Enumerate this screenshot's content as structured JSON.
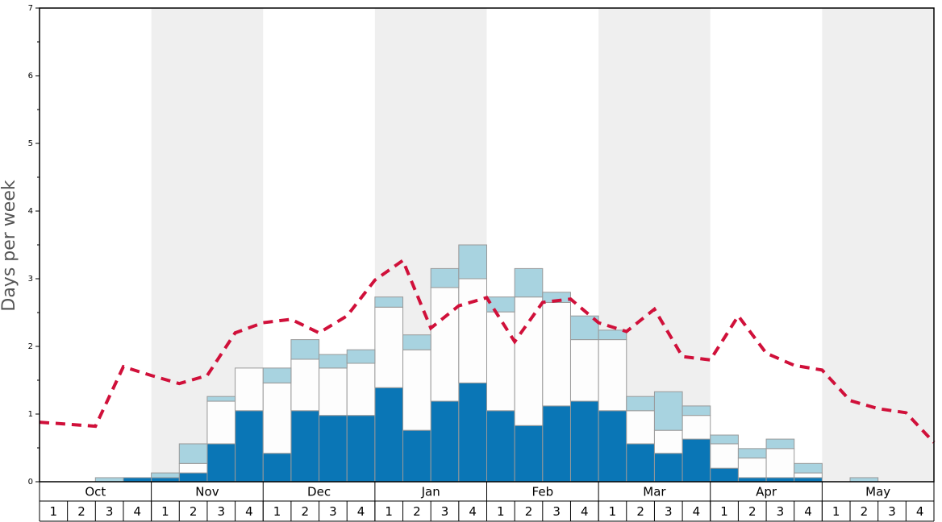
{
  "chart_data": {
    "type": "bar",
    "stacked": true,
    "y_label": "Days per week",
    "months": [
      "Oct",
      "Nov",
      "Dec",
      "Jan",
      "Feb",
      "Mar",
      "Apr",
      "May"
    ],
    "categories": [
      "1",
      "2",
      "3",
      "4",
      "1",
      "2",
      "3",
      "4",
      "1",
      "2",
      "3",
      "4",
      "1",
      "2",
      "3",
      "4",
      "1",
      "2",
      "3",
      "4",
      "1",
      "2",
      "3",
      "4",
      "1",
      "2",
      "3",
      "4",
      "1",
      "2",
      "3",
      "4"
    ],
    "series": [
      {
        "color": "#0a76b6",
        "values": [
          0,
          0,
          0,
          0.06,
          0.06,
          0.13,
          0.56,
          1.05,
          0.42,
          1.05,
          0.98,
          0.98,
          1.39,
          0.76,
          1.19,
          1.46,
          1.05,
          0.83,
          1.12,
          1.19,
          1.05,
          0.56,
          0.42,
          0.63,
          0.2,
          0.06,
          0.06,
          0.06,
          0,
          0,
          0,
          0
        ]
      },
      {
        "color": "#fdfdfd",
        "values": [
          0,
          0,
          0,
          0,
          0,
          0.14,
          0.63,
          0.63,
          1.04,
          0.76,
          0.7,
          0.77,
          1.19,
          1.19,
          1.68,
          1.54,
          1.46,
          1.9,
          1.53,
          0.91,
          1.05,
          0.49,
          0.34,
          0.35,
          0.36,
          0.29,
          0.43,
          0.07,
          0,
          0,
          0,
          0
        ]
      },
      {
        "color": "#a8d3e0",
        "values": [
          0,
          0,
          0.06,
          0,
          0.07,
          0.29,
          0.07,
          0,
          0.22,
          0.29,
          0.2,
          0.2,
          0.15,
          0.22,
          0.28,
          0.5,
          0.22,
          0.42,
          0.15,
          0.35,
          0.14,
          0.21,
          0.57,
          0.14,
          0.13,
          0.14,
          0.14,
          0.14,
          0,
          0.06,
          0,
          0
        ]
      },
      {
        "type": "line",
        "color": "#d0103a",
        "dashed": true,
        "x": [
          0,
          1,
          2,
          3,
          4,
          5,
          6,
          7,
          8,
          9,
          10,
          11,
          12,
          13,
          14,
          15,
          16,
          17,
          18,
          19,
          20,
          21,
          22,
          23,
          24,
          25,
          26,
          27,
          28,
          29,
          30,
          31,
          32
        ],
        "values": [
          0.88,
          0.85,
          0.82,
          1.7,
          1.57,
          1.45,
          1.57,
          2.2,
          2.35,
          2.4,
          2.2,
          2.45,
          2.98,
          3.27,
          2.27,
          2.6,
          2.72,
          2.07,
          2.65,
          2.7,
          2.35,
          2.22,
          2.55,
          1.85,
          1.8,
          2.45,
          1.9,
          1.72,
          1.65,
          1.2,
          1.08,
          1.02,
          0.58
        ]
      }
    ],
    "xlim": [
      0,
      32
    ],
    "ylim": [
      0,
      7
    ],
    "yticks": [
      0,
      1,
      2,
      3,
      4,
      5,
      6,
      7
    ],
    "yminorticks": [
      0.5,
      1.5,
      2.5,
      3.5,
      4.5,
      5.5,
      6.5
    ],
    "shade_alternate_months": true
  }
}
